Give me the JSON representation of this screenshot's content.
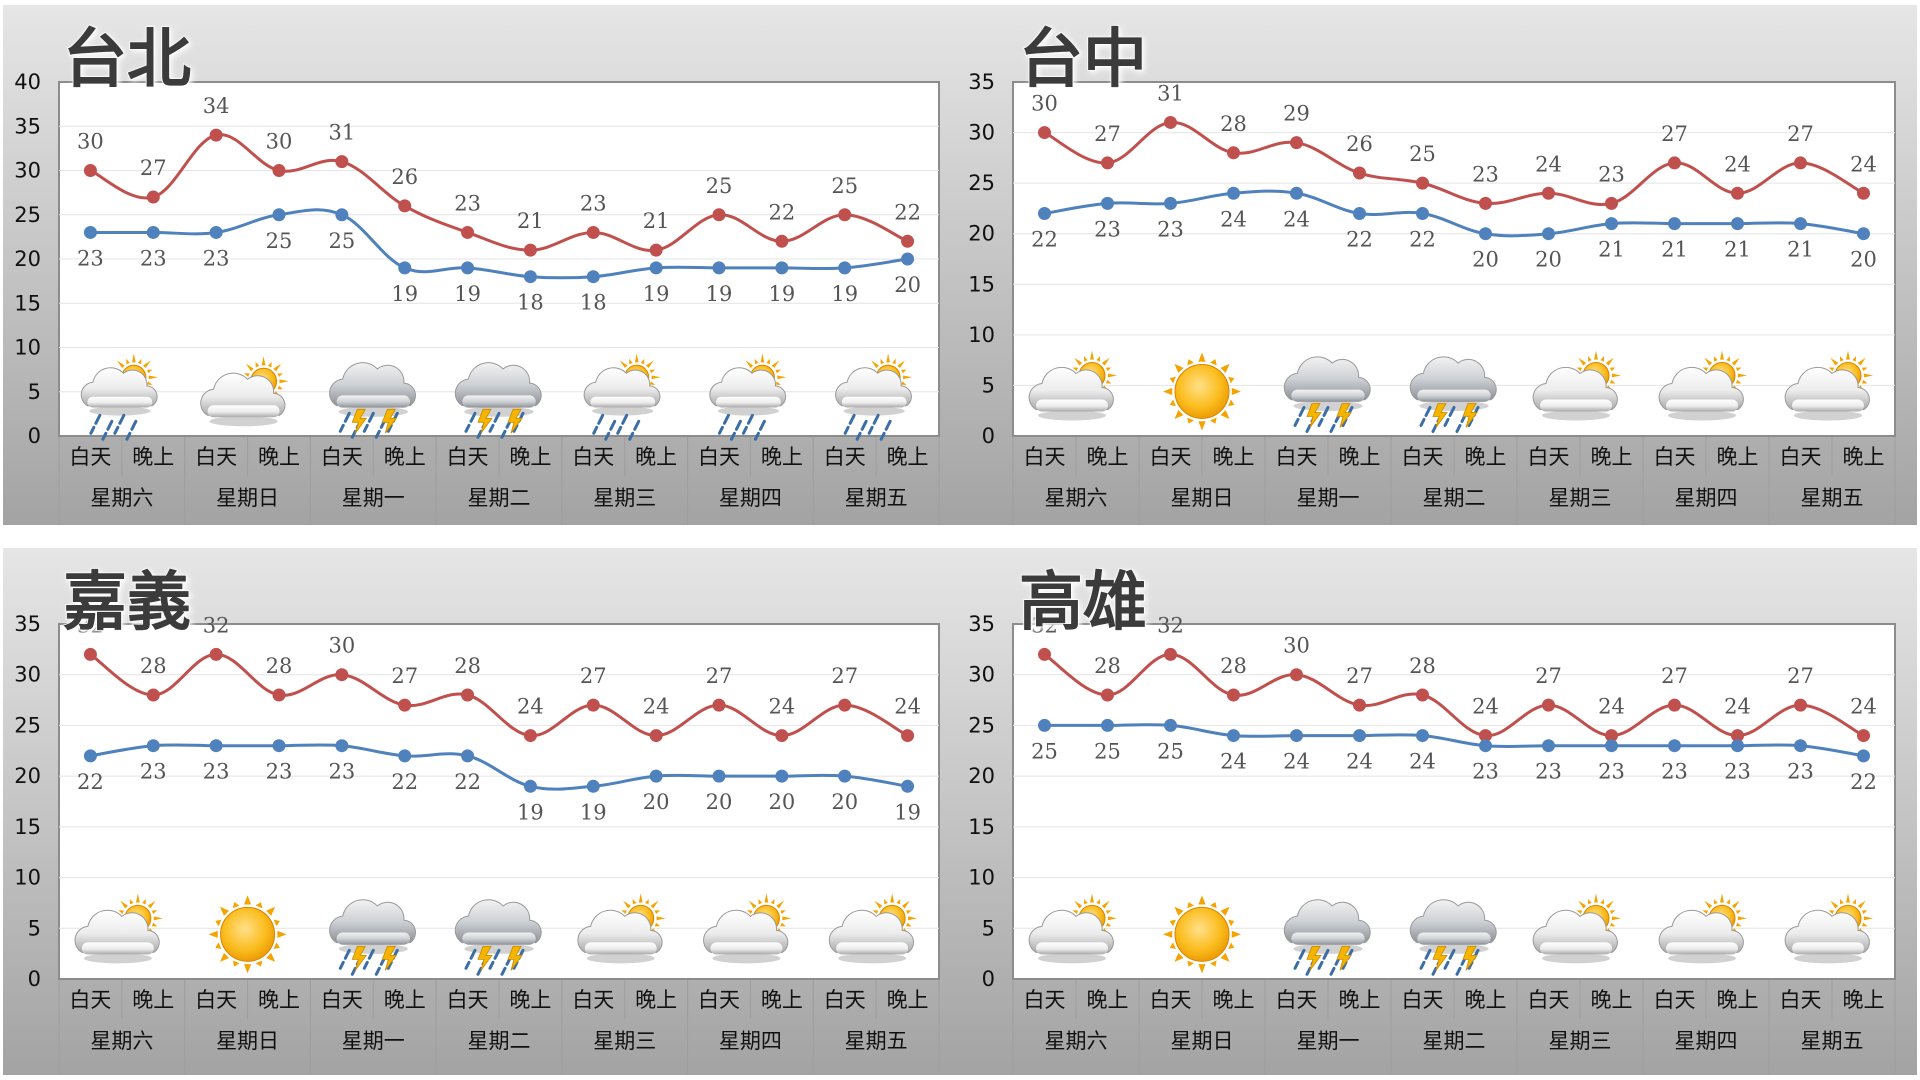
{
  "day_night_labels": [
    "白天",
    "晚上"
  ],
  "weekdays": [
    "星期六",
    "星期日",
    "星期一",
    "星期二",
    "星期三",
    "星期四",
    "星期五"
  ],
  "colors": {
    "high": "#c0504d",
    "low": "#4f81bd"
  },
  "chart_data": [
    {
      "type": "line",
      "title": "台北",
      "ylim": [
        0,
        40
      ],
      "yticks": [
        0,
        5,
        10,
        15,
        20,
        25,
        30,
        35,
        40
      ],
      "grid": true,
      "series": [
        {
          "values": [
            30,
            27,
            34,
            30,
            31,
            26,
            23,
            21,
            23,
            21,
            25,
            22,
            25,
            22
          ]
        },
        {
          "values": [
            23,
            23,
            23,
            25,
            25,
            19,
            19,
            18,
            18,
            19,
            19,
            19,
            19,
            20
          ]
        }
      ],
      "weather_icons": [
        "partly-cloudy-rain-icon",
        "partly-cloudy-icon",
        "thunder-rain-icon",
        "thunder-rain-icon",
        "partly-cloudy-rain-icon",
        "partly-cloudy-rain-icon",
        "partly-cloudy-rain-icon"
      ]
    },
    {
      "type": "line",
      "title": "台中",
      "ylim": [
        0,
        35
      ],
      "yticks": [
        0,
        5,
        10,
        15,
        20,
        25,
        30,
        35
      ],
      "grid": true,
      "series": [
        {
          "values": [
            30,
            27,
            31,
            28,
            29,
            26,
            25,
            23,
            24,
            23,
            27,
            24,
            27,
            24
          ]
        },
        {
          "values": [
            22,
            23,
            23,
            24,
            24,
            22,
            22,
            20,
            20,
            21,
            21,
            21,
            21,
            20
          ]
        }
      ],
      "weather_icons": [
        "partly-cloudy-icon",
        "sunny-icon",
        "thunder-rain-icon",
        "thunder-rain-icon",
        "partly-cloudy-icon",
        "partly-cloudy-icon",
        "partly-cloudy-icon"
      ]
    },
    {
      "type": "line",
      "title": "嘉義",
      "ylim": [
        0,
        35
      ],
      "yticks": [
        0,
        5,
        10,
        15,
        20,
        25,
        30,
        35
      ],
      "grid": true,
      "series": [
        {
          "values": [
            32,
            28,
            32,
            28,
            30,
            27,
            28,
            24,
            27,
            24,
            27,
            24,
            27,
            24
          ]
        },
        {
          "values": [
            22,
            23,
            23,
            23,
            23,
            22,
            22,
            19,
            19,
            20,
            20,
            20,
            20,
            19
          ]
        }
      ],
      "weather_icons": [
        "partly-cloudy-icon",
        "sunny-icon",
        "thunder-rain-icon",
        "thunder-rain-icon",
        "partly-cloudy-icon",
        "partly-cloudy-icon",
        "partly-cloudy-icon"
      ]
    },
    {
      "type": "line",
      "title": "高雄",
      "ylim": [
        0,
        35
      ],
      "yticks": [
        0,
        5,
        10,
        15,
        20,
        25,
        30,
        35
      ],
      "grid": true,
      "series": [
        {
          "values": [
            32,
            28,
            32,
            28,
            30,
            27,
            28,
            24,
            27,
            24,
            27,
            24,
            27,
            24
          ]
        },
        {
          "values": [
            25,
            25,
            25,
            24,
            24,
            24,
            24,
            23,
            23,
            23,
            23,
            23,
            23,
            22
          ]
        }
      ],
      "weather_icons": [
        "partly-cloudy-icon",
        "sunny-icon",
        "thunder-rain-icon",
        "thunder-rain-icon",
        "partly-cloudy-icon",
        "partly-cloudy-icon",
        "partly-cloudy-icon"
      ]
    }
  ]
}
